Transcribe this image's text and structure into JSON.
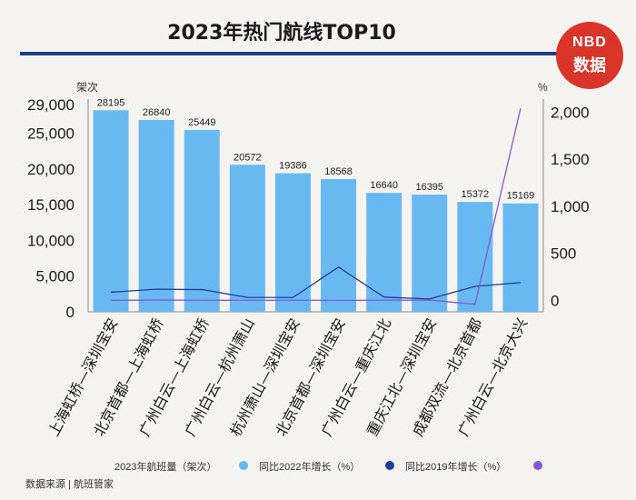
{
  "title": "2023年热门航线TOP10",
  "logo": {
    "line1": "NBD",
    "line2": "数据"
  },
  "left_axis_unit": "架次",
  "right_axis_unit": "%",
  "chart_data": {
    "type": "bar",
    "title": "2023年热门航线TOP10",
    "categories": [
      "上海虹桥—深圳宝安",
      "北京首都—上海虹桥",
      "广州白云—上海虹桥",
      "广州白云—杭州萧山",
      "杭州萧山—深圳宝安",
      "北京首都—深圳宝安",
      "广州白云—重庆江北",
      "重庆江北—深圳宝安",
      "成都双流—北京首都",
      "广州白云—北京大兴"
    ],
    "bar_series": {
      "name": "2023年航班量（架次）",
      "values": [
        28195,
        26840,
        25449,
        20572,
        19386,
        18568,
        16640,
        16395,
        15372,
        15169
      ],
      "color": "#68b8f1"
    },
    "line_series": [
      {
        "name": "同比2022年增长（%）",
        "axis": "right",
        "color": "#1f3c96",
        "values": [
          88,
          120,
          116,
          33,
          32,
          355,
          36,
          16,
          150,
          190
        ]
      },
      {
        "name": "同比2019年增长（%）",
        "axis": "right",
        "color": "#8a56d4",
        "values": [
          2,
          5,
          3,
          2,
          3,
          2,
          3,
          5,
          -40,
          2040
        ]
      }
    ],
    "left_axis": {
      "range": [
        0,
        29000
      ],
      "ticks": [
        0,
        5000,
        10000,
        15000,
        20000,
        25000,
        29000
      ],
      "tick_labels": [
        "0",
        "5,000",
        "10,000",
        "15,000",
        "20,000",
        "25,000",
        "29,000"
      ]
    },
    "right_axis": {
      "range": [
        -120,
        2080
      ],
      "ticks": [
        0,
        500,
        1000,
        1500,
        2000
      ],
      "tick_labels": [
        "0",
        "500",
        "1,000",
        "1,500",
        "2,000"
      ]
    },
    "grid": false
  },
  "legend": [
    {
      "label": "2023年航班量（架次）",
      "color": "#68b8f1"
    },
    {
      "label": "同比2022年增长（%）",
      "color": "#1f3c96"
    },
    {
      "label": "同比2019年增长（%）",
      "color": "#8a56d4"
    }
  ],
  "source": "数据来源 | 航班管家"
}
